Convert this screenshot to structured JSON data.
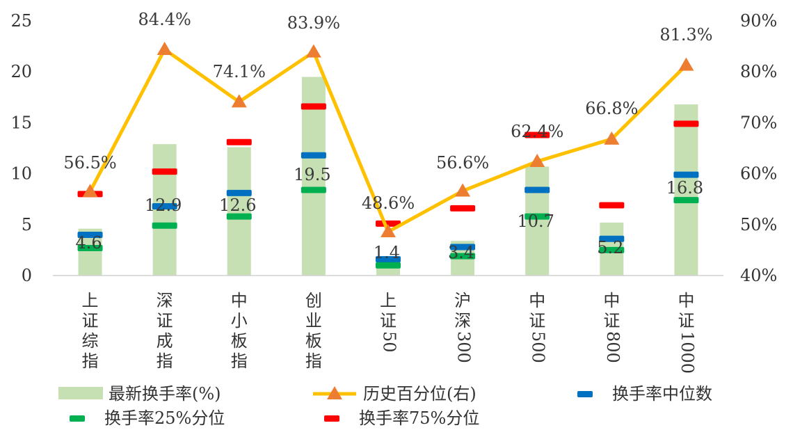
{
  "chart_data": {
    "type": "bar",
    "categories": [
      "上证综指",
      "深证成指",
      "中小板指",
      "创业板指",
      "上证50",
      "沪深300",
      "中证500",
      "中证800",
      "中证1000"
    ],
    "category_labels_vertical": [
      [
        "上",
        "证",
        "综",
        "指"
      ],
      [
        "深",
        "证",
        "成",
        "指"
      ],
      [
        "中",
        "小",
        "板",
        "指"
      ],
      [
        "创",
        "业",
        "板",
        "指"
      ],
      [
        "上",
        "证",
        "50"
      ],
      [
        "沪",
        "深",
        "300"
      ],
      [
        "中",
        "证",
        "500"
      ],
      [
        "中",
        "证",
        "800"
      ],
      [
        "中",
        "证",
        "1000"
      ]
    ],
    "y_left": {
      "min": 0,
      "max": 25,
      "ticks": [
        "0",
        "5",
        "10",
        "15",
        "20",
        "25"
      ]
    },
    "y_right": {
      "min": 40,
      "max": 90,
      "ticks": [
        "40%",
        "50%",
        "60%",
        "70%",
        "80%",
        "90%"
      ]
    },
    "grid": false,
    "legend_position": "bottom",
    "series": [
      {
        "name": "最新换手率(%)",
        "kind": "bar",
        "axis": "left",
        "color": "#c6e0b4",
        "values": [
          4.6,
          12.9,
          12.6,
          19.5,
          1.4,
          3.4,
          10.7,
          5.2,
          16.8
        ],
        "labels": [
          "4.6",
          "12.9",
          "12.6",
          "19.5",
          "1.4",
          "3.4",
          "10.7",
          "5.2",
          "16.8"
        ]
      },
      {
        "name": "历史百分位(右)",
        "kind": "line",
        "axis": "right",
        "color": "#ffc000",
        "marker_color": "#ed7d31",
        "values": [
          56.5,
          84.4,
          74.1,
          83.9,
          48.6,
          56.6,
          62.4,
          66.8,
          81.3
        ],
        "labels": [
          "56.5%",
          "84.4%",
          "74.1%",
          "83.9%",
          "48.6%",
          "56.6%",
          "62.4%",
          "66.8%",
          "81.3%"
        ]
      },
      {
        "name": "换手率中位数",
        "kind": "dash",
        "axis": "left",
        "color": "#0070c0",
        "values": [
          4.0,
          6.8,
          8.1,
          11.8,
          1.6,
          2.8,
          8.4,
          3.6,
          9.9
        ]
      },
      {
        "name": "换手率25%分位",
        "kind": "dash",
        "axis": "left",
        "color": "#00b050",
        "values": [
          2.7,
          4.9,
          5.8,
          8.4,
          1.0,
          1.9,
          5.8,
          2.5,
          7.4
        ]
      },
      {
        "name": "换手率75%分位",
        "kind": "dash",
        "axis": "left",
        "color": "#ff0000",
        "values": [
          8.0,
          10.2,
          13.1,
          16.6,
          5.1,
          6.6,
          13.8,
          6.9,
          14.9
        ]
      }
    ]
  }
}
